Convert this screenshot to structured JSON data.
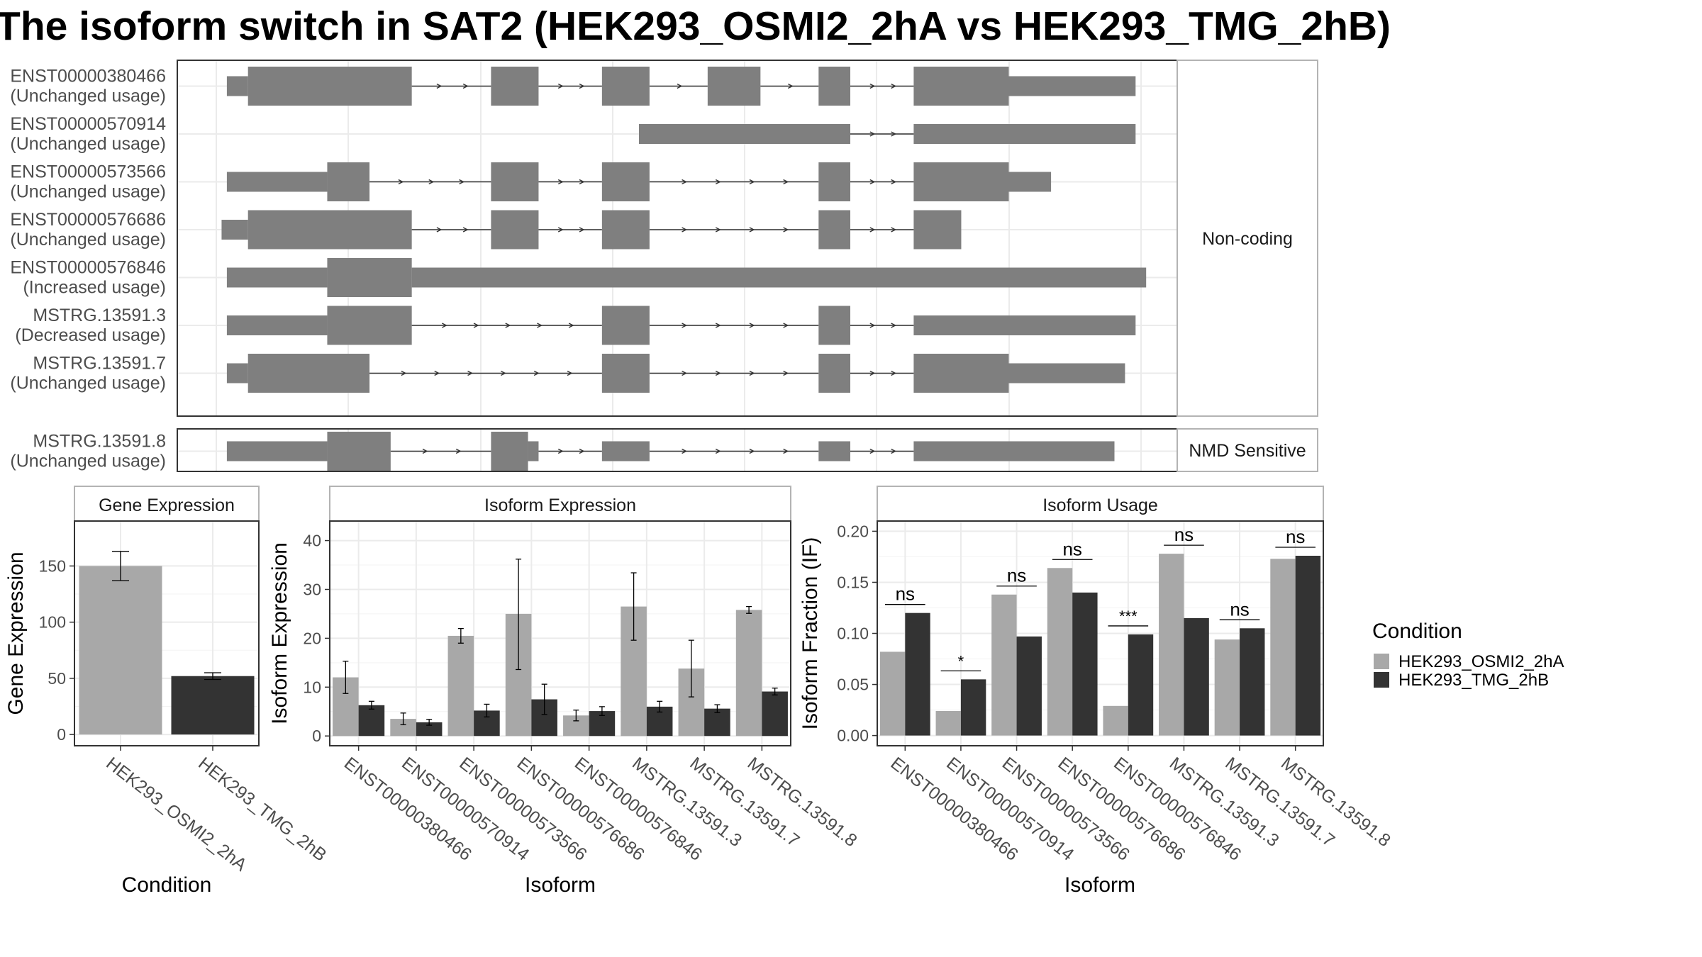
{
  "title": "The isoform switch in SAT2 (HEK293_OSMI2_2hA vs HEK293_TMG_2hB)",
  "structure": {
    "groups": [
      {
        "label": "Non-coding",
        "isoforms": [
          {
            "id": "ENST00000380466",
            "usage": "(Unchanged usage)",
            "exons": [
              [
                1,
                3,
                "s"
              ],
              [
                3,
                18.5,
                "t"
              ],
              [
                26,
                30.5,
                "t"
              ],
              [
                36.5,
                41,
                "t"
              ],
              [
                46.5,
                51.5,
                "t"
              ],
              [
                57,
                60,
                "t"
              ],
              [
                66,
                75,
                "t"
              ],
              [
                75,
                87,
                "s"
              ]
            ]
          },
          {
            "id": "ENST00000570914",
            "usage": "(Unchanged usage)",
            "exons": [
              [
                40,
                60,
                "s"
              ],
              [
                66,
                87,
                "s"
              ]
            ]
          },
          {
            "id": "ENST00000573566",
            "usage": "(Unchanged usage)",
            "exons": [
              [
                1,
                10.5,
                "s"
              ],
              [
                10.5,
                14.5,
                "t"
              ],
              [
                26,
                30.5,
                "t"
              ],
              [
                36.5,
                41,
                "t"
              ],
              [
                57,
                60,
                "t"
              ],
              [
                66,
                75,
                "t"
              ],
              [
                75,
                79,
                "s"
              ]
            ]
          },
          {
            "id": "ENST00000576686",
            "usage": "(Unchanged usage)",
            "exons": [
              [
                0.5,
                3,
                "s"
              ],
              [
                3,
                18.5,
                "t"
              ],
              [
                26,
                30.5,
                "t"
              ],
              [
                36.5,
                41,
                "t"
              ],
              [
                57,
                60,
                "t"
              ],
              [
                66,
                70.5,
                "t"
              ]
            ]
          },
          {
            "id": "ENST00000576846",
            "usage": "(Increased usage)",
            "exons": [
              [
                1,
                10.5,
                "s"
              ],
              [
                10.5,
                18.5,
                "t"
              ],
              [
                18.5,
                88,
                "s"
              ]
            ]
          },
          {
            "id": "MSTRG.13591.3",
            "usage": "(Decreased usage)",
            "exons": [
              [
                1,
                10.5,
                "s"
              ],
              [
                10.5,
                18.5,
                "t"
              ],
              [
                36.5,
                41,
                "t"
              ],
              [
                57,
                60,
                "t"
              ],
              [
                66,
                87,
                "s"
              ]
            ]
          },
          {
            "id": "MSTRG.13591.7",
            "usage": "(Unchanged usage)",
            "exons": [
              [
                1,
                3,
                "s"
              ],
              [
                3,
                14.5,
                "t"
              ],
              [
                36.5,
                41,
                "t"
              ],
              [
                57,
                60,
                "t"
              ],
              [
                66,
                75,
                "t"
              ],
              [
                75,
                86,
                "s"
              ]
            ]
          }
        ]
      },
      {
        "label": "NMD Sensitive",
        "isoforms": [
          {
            "id": "MSTRG.13591.8",
            "usage": "(Unchanged usage)",
            "exons": [
              [
                1,
                10.5,
                "s"
              ],
              [
                10.5,
                16.5,
                "t"
              ],
              [
                26,
                29.5,
                "t"
              ],
              [
                29.5,
                30.5,
                "s"
              ],
              [
                36.5,
                41,
                "s"
              ],
              [
                57,
                60,
                "s"
              ],
              [
                66,
                85,
                "s"
              ]
            ]
          }
        ]
      }
    ]
  },
  "legend": {
    "title": "Condition",
    "items": [
      {
        "label": "HEK293_OSMI2_2hA",
        "color": "#a8a8a8"
      },
      {
        "label": "HEK293_TMG_2hB",
        "color": "#333333"
      }
    ]
  },
  "chart_data": [
    {
      "type": "bar",
      "title": "Gene Expression",
      "xlabel": "Condition",
      "ylabel": "Gene Expression",
      "ylim": [
        -10,
        190
      ],
      "yticks": [
        0,
        50,
        100,
        150
      ],
      "categories": [
        "HEK293_OSMI2_2hA",
        "HEK293_TMG_2hB"
      ],
      "values": [
        150,
        52
      ],
      "errors": [
        [
          137,
          163
        ],
        [
          49,
          55
        ]
      ],
      "colors": [
        "#a8a8a8",
        "#333333"
      ]
    },
    {
      "type": "bar",
      "title": "Isoform Expression",
      "xlabel": "Isoform",
      "ylabel": "Isoform Expression",
      "ylim": [
        -2,
        44
      ],
      "yticks": [
        0,
        10,
        20,
        30,
        40
      ],
      "categories": [
        "ENST00000380466",
        "ENST00000570914",
        "ENST00000573566",
        "ENST00000576686",
        "ENST00000576846",
        "MSTRG.13591.3",
        "MSTRG.13591.7",
        "MSTRG.13591.8"
      ],
      "series": [
        {
          "name": "HEK293_OSMI2_2hA",
          "color": "#a8a8a8",
          "values": [
            12,
            3.5,
            20.5,
            25,
            4.2,
            26.5,
            13.8,
            25.8
          ],
          "errors": [
            [
              8.7,
              15.3
            ],
            [
              2.3,
              4.7
            ],
            [
              19,
              22
            ],
            [
              13.6,
              36.2
            ],
            [
              3.1,
              5.3
            ],
            [
              19.6,
              33.4
            ],
            [
              8,
              19.6
            ],
            [
              25.1,
              26.5
            ]
          ]
        },
        {
          "name": "HEK293_TMG_2hB",
          "color": "#333333",
          "values": [
            6.3,
            2.8,
            5.2,
            7.5,
            5.1,
            6,
            5.6,
            9.1
          ],
          "errors": [
            [
              5.5,
              7.1
            ],
            [
              2.2,
              3.4
            ],
            [
              3.9,
              6.5
            ],
            [
              4.4,
              10.6
            ],
            [
              4.2,
              6
            ],
            [
              4.9,
              7.1
            ],
            [
              4.8,
              6.4
            ],
            [
              8.4,
              9.8
            ]
          ]
        }
      ]
    },
    {
      "type": "bar",
      "title": "Isoform Usage",
      "xlabel": "Isoform",
      "ylabel": "Isoform Fraction (IF)",
      "ylim": [
        -0.01,
        0.21
      ],
      "yticks": [
        0,
        0.05,
        0.1,
        0.15,
        0.2
      ],
      "ytick_labels": [
        "0.00",
        "0.05",
        "0.10",
        "0.15",
        "0.20"
      ],
      "categories": [
        "ENST00000380466",
        "ENST00000570914",
        "ENST00000573566",
        "ENST00000576686",
        "ENST00000576846",
        "MSTRG.13591.3",
        "MSTRG.13591.7",
        "MSTRG.13591.8"
      ],
      "series": [
        {
          "name": "HEK293_OSMI2_2hA",
          "color": "#a8a8a8",
          "values": [
            0.082,
            0.024,
            0.138,
            0.164,
            0.029,
            0.178,
            0.094,
            0.173
          ]
        },
        {
          "name": "HEK293_TMG_2hB",
          "color": "#333333",
          "values": [
            0.12,
            0.055,
            0.097,
            0.14,
            0.099,
            0.115,
            0.105,
            0.176
          ]
        }
      ],
      "significance": [
        "ns",
        "*",
        "ns",
        "ns",
        "***",
        "ns",
        "ns",
        "ns"
      ]
    }
  ]
}
